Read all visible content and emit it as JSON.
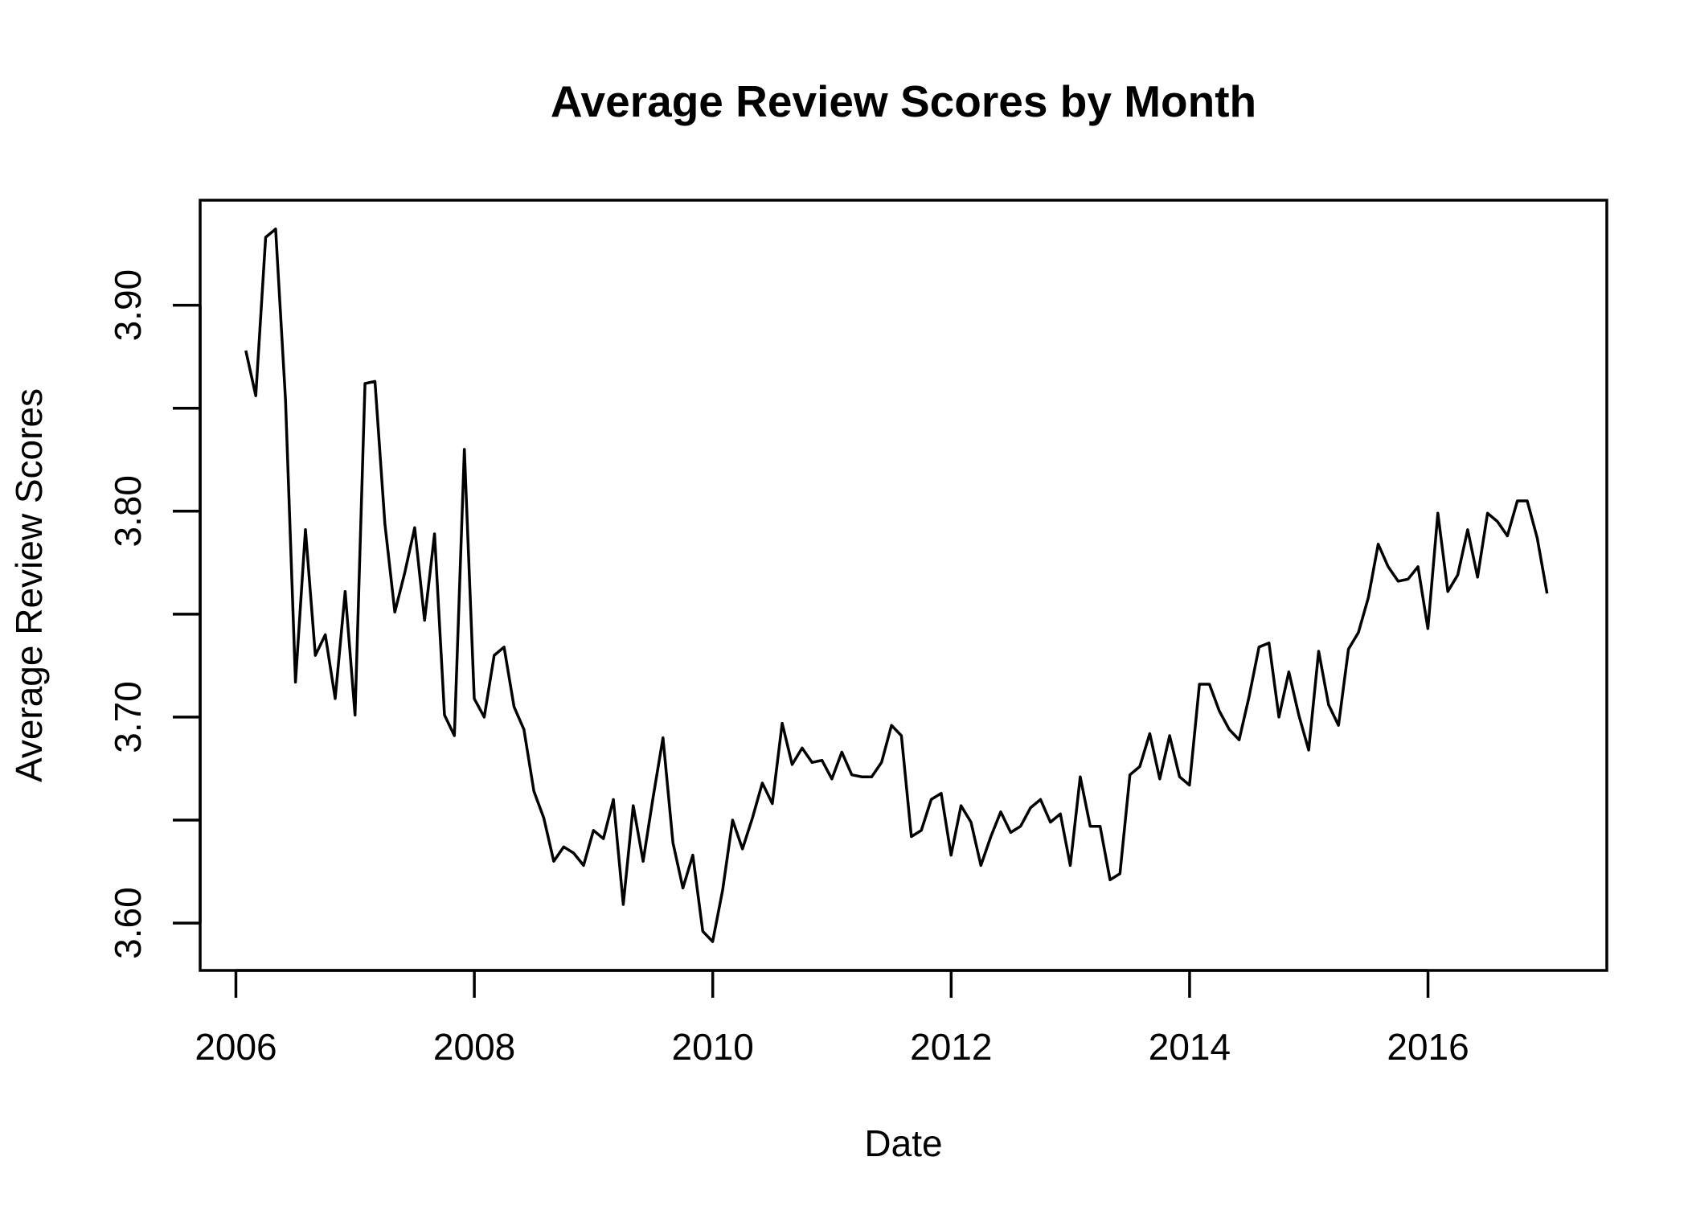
{
  "chart_data": {
    "type": "line",
    "title": "Average Review Scores by Month",
    "xlabel": "Date",
    "ylabel": "Average Review Scores",
    "xlim": [
      2005.7,
      2017.5
    ],
    "ylim": [
      3.577,
      3.951
    ],
    "x_ticks": [
      2006,
      2008,
      2010,
      2012,
      2014,
      2016
    ],
    "x_tick_labels": [
      "2006",
      "2008",
      "2010",
      "2012",
      "2014",
      "2016"
    ],
    "y_ticks": [
      3.6,
      3.65,
      3.7,
      3.75,
      3.8,
      3.85,
      3.9
    ],
    "y_tick_labels": [
      "3.60",
      "",
      "3.70",
      "",
      "3.80",
      "",
      "3.90"
    ],
    "grid": false,
    "line_color": "#000000",
    "series": [
      {
        "x_start": 2006.083,
        "x_step": 0.08333,
        "values": [
          3.878,
          3.856,
          3.933,
          3.937,
          3.854,
          3.717,
          3.791,
          3.73,
          3.74,
          3.709,
          3.761,
          3.701,
          3.862,
          3.863,
          3.794,
          3.751,
          3.77,
          3.792,
          3.747,
          3.789,
          3.701,
          3.691,
          3.83,
          3.709,
          3.7,
          3.73,
          3.734,
          3.705,
          3.694,
          3.664,
          3.651,
          3.63,
          3.637,
          3.634,
          3.628,
          3.645,
          3.641,
          3.66,
          3.609,
          3.657,
          3.63,
          3.661,
          3.69,
          3.639,
          3.617,
          3.633,
          3.596,
          3.591,
          3.616,
          3.65,
          3.636,
          3.651,
          3.668,
          3.658,
          3.697,
          3.677,
          3.685,
          3.678,
          3.679,
          3.67,
          3.683,
          3.672,
          3.671,
          3.671,
          3.678,
          3.696,
          3.691,
          3.642,
          3.645,
          3.66,
          3.663,
          3.633,
          3.657,
          3.649,
          3.628,
          3.642,
          3.654,
          3.644,
          3.647,
          3.656,
          3.66,
          3.649,
          3.653,
          3.628,
          3.671,
          3.647,
          3.647,
          3.621,
          3.624,
          3.672,
          3.676,
          3.692,
          3.67,
          3.691,
          3.671,
          3.667,
          3.716,
          3.716,
          3.703,
          3.694,
          3.689,
          3.71,
          3.734,
          3.736,
          3.7,
          3.722,
          3.701,
          3.684,
          3.732,
          3.706,
          3.696,
          3.733,
          3.741,
          3.758,
          3.784,
          3.773,
          3.766,
          3.767,
          3.773,
          3.743,
          3.799,
          3.761,
          3.769,
          3.791,
          3.768,
          3.799,
          3.795,
          3.788,
          3.805,
          3.805,
          3.787,
          3.76
        ]
      }
    ]
  }
}
